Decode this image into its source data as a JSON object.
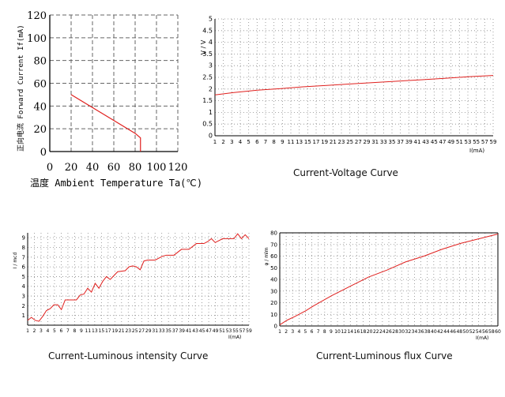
{
  "colors": {
    "curve": "#e0201e",
    "grid": "#888888",
    "axis": "#000000"
  },
  "charts": {
    "derating": {
      "xlabel": "温度 Ambient Temperature Ta(℃)",
      "ylabel": "正向电流 Forward Current If(mA)",
      "xticks": [
        "0",
        "20",
        "40",
        "60",
        "80",
        "100",
        "120"
      ],
      "yticks": [
        "0",
        "20",
        "40",
        "60",
        "80",
        "100",
        "120"
      ],
      "caption": ""
    },
    "voltage": {
      "ylabel": "V / V",
      "xunit": "I(mA)",
      "xticks": [
        "1",
        "2",
        "3",
        "4",
        "5",
        "6",
        "7",
        "8",
        "9",
        "11",
        "13",
        "15",
        "17",
        "19",
        "21",
        "23",
        "25",
        "27",
        "29",
        "31",
        "33",
        "35",
        "37",
        "39",
        "41",
        "43",
        "45",
        "47",
        "49",
        "51",
        "53",
        "55",
        "57",
        "59"
      ],
      "yticks": [
        "0",
        "0.5",
        "1",
        "1.5",
        "2",
        "2.5",
        "3",
        "3.5",
        "4",
        "4.5",
        "5"
      ],
      "caption": "Current-Voltage Curve"
    },
    "intensity": {
      "ylabel": "I / mcd",
      "xunit": "I(mA)",
      "xticks": [
        "1",
        "2",
        "3",
        "4",
        "5",
        "6",
        "7",
        "8",
        "9",
        "11",
        "13",
        "15",
        "17",
        "19",
        "21",
        "23",
        "25",
        "27",
        "29",
        "31",
        "33",
        "35",
        "37",
        "39",
        "41",
        "43",
        "45",
        "47",
        "49",
        "51",
        "53",
        "55",
        "57",
        "59"
      ],
      "yticks": [
        "0",
        "1",
        "2",
        "3",
        "4",
        "5",
        "6",
        "7",
        "8",
        "9"
      ],
      "caption": "Current-Luminous intensity Curve"
    },
    "flux": {
      "ylabel": "φ / mlm",
      "xunit": "I(mA)",
      "xticks": [
        "1",
        "2",
        "3",
        "4",
        "5",
        "6",
        "7",
        "8",
        "9",
        "10",
        "12",
        "14",
        "16",
        "18",
        "20",
        "22",
        "24",
        "26",
        "28",
        "30",
        "32",
        "34",
        "36",
        "38",
        "40",
        "42",
        "44",
        "46",
        "48",
        "50",
        "52",
        "54",
        "56",
        "58",
        "60"
      ],
      "yticks": [
        "0",
        "10",
        "20",
        "30",
        "40",
        "50",
        "60",
        "70",
        "80"
      ],
      "caption": "Current-Luminous flux Curve"
    }
  },
  "chart_data": [
    {
      "type": "line",
      "title": "",
      "xlabel": "温度 Ambient Temperature Ta(℃)",
      "ylabel": "正向电流 Forward Current If(mA)",
      "xlim": [
        0,
        120
      ],
      "ylim": [
        0,
        120
      ],
      "grid": true,
      "series": [
        {
          "x": [
            20,
            80,
            85,
            85
          ],
          "y": [
            50,
            16,
            12,
            0
          ]
        }
      ]
    },
    {
      "type": "line",
      "title": "Current-Voltage Curve",
      "xlabel": "I(mA)",
      "ylabel": "V / V",
      "xlim": [
        1,
        60
      ],
      "ylim": [
        0,
        5
      ],
      "grid": true,
      "series": [
        {
          "x": [
            1,
            5,
            10,
            15,
            20,
            25,
            30,
            35,
            40,
            45,
            50,
            55,
            60
          ],
          "y": [
            1.75,
            1.85,
            1.95,
            2.02,
            2.1,
            2.16,
            2.22,
            2.28,
            2.34,
            2.4,
            2.46,
            2.53,
            2.58
          ]
        }
      ]
    },
    {
      "type": "line",
      "title": "Current-Luminous intensity Curve",
      "xlabel": "I(mA)",
      "ylabel": "I / mcd",
      "xlim": [
        1,
        60
      ],
      "ylim": [
        0,
        9.5
      ],
      "grid": true,
      "series": [
        {
          "x": [
            1,
            2,
            3,
            4,
            5,
            6,
            7,
            8,
            9,
            10,
            11,
            12,
            14,
            15,
            16,
            17,
            18,
            19,
            20,
            21,
            22,
            23,
            25,
            27,
            28,
            29,
            30,
            31,
            32,
            33,
            35,
            37,
            38,
            40,
            42,
            44,
            46,
            48,
            49,
            50,
            51,
            53,
            55,
            56,
            57,
            58,
            59,
            60
          ],
          "y": [
            0.5,
            0.8,
            0.5,
            0.4,
            0.9,
            1.5,
            1.7,
            2.1,
            2.1,
            1.6,
            2.6,
            2.6,
            2.6,
            3.1,
            3.2,
            3.8,
            3.4,
            4.3,
            3.8,
            4.5,
            5.0,
            4.7,
            5.5,
            5.6,
            6.0,
            6.1,
            6.0,
            5.7,
            6.6,
            6.7,
            6.7,
            7.1,
            7.2,
            7.2,
            7.8,
            7.8,
            8.4,
            8.4,
            8.6,
            8.9,
            8.5,
            8.9,
            8.9,
            8.9,
            9.4,
            8.9,
            9.3,
            8.9
          ]
        }
      ]
    },
    {
      "type": "line",
      "title": "Current-Luminous flux Curve",
      "xlabel": "I(mA)",
      "ylabel": "φ / mlm",
      "xlim": [
        1,
        60
      ],
      "ylim": [
        0,
        80
      ],
      "grid": true,
      "series": [
        {
          "x": [
            1,
            3,
            5,
            8,
            10,
            15,
            20,
            25,
            30,
            35,
            40,
            45,
            50,
            55,
            60
          ],
          "y": [
            1,
            5,
            8,
            13,
            17,
            26,
            34,
            42,
            48,
            55,
            60,
            66,
            71,
            75,
            79
          ]
        }
      ]
    }
  ]
}
